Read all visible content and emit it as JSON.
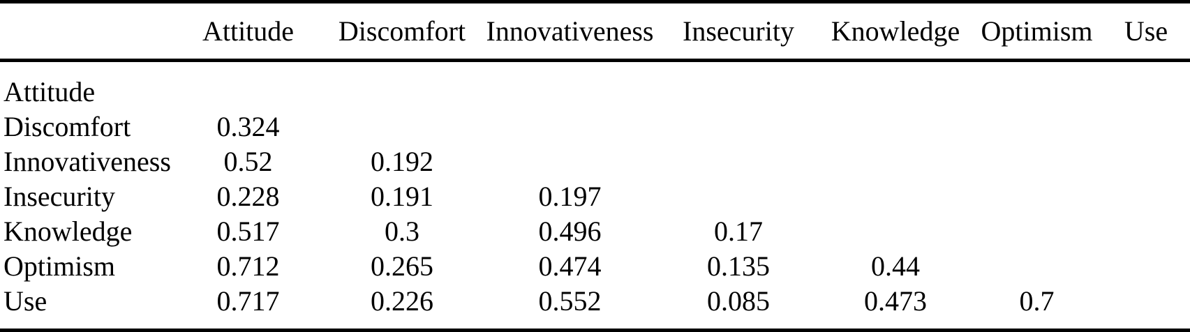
{
  "table": {
    "title": "correlation-matrix",
    "columns": [
      "",
      "Attitude",
      "Discomfort",
      "Innovativeness",
      "Insecurity",
      "Knowledge",
      "Optimism",
      "Use"
    ],
    "rows": [
      {
        "label": "Attitude",
        "values": [
          "",
          "",
          "",
          "",
          "",
          "",
          ""
        ]
      },
      {
        "label": "Discomfort",
        "values": [
          "0.324",
          "",
          "",
          "",
          "",
          "",
          ""
        ]
      },
      {
        "label": "Innovativeness",
        "values": [
          "0.52",
          "0.192",
          "",
          "",
          "",
          "",
          ""
        ]
      },
      {
        "label": "Insecurity",
        "values": [
          "0.228",
          "0.191",
          "0.197",
          "",
          "",
          "",
          ""
        ]
      },
      {
        "label": "Knowledge",
        "values": [
          "0.517",
          "0.3",
          "0.496",
          "0.17",
          "",
          "",
          ""
        ]
      },
      {
        "label": "Optimism",
        "values": [
          "0.712",
          "0.265",
          "0.474",
          "0.135",
          "0.44",
          "",
          ""
        ]
      },
      {
        "label": "Use",
        "values": [
          "0.717",
          "0.226",
          "0.552",
          "0.085",
          "0.473",
          "0.7",
          ""
        ]
      }
    ]
  },
  "chart_data": {
    "type": "table",
    "title": "",
    "columns": [
      "",
      "Attitude",
      "Discomfort",
      "Innovativeness",
      "Insecurity",
      "Knowledge",
      "Optimism",
      "Use"
    ],
    "rows": [
      [
        "Attitude",
        null,
        null,
        null,
        null,
        null,
        null,
        null
      ],
      [
        "Discomfort",
        0.324,
        null,
        null,
        null,
        null,
        null,
        null
      ],
      [
        "Innovativeness",
        0.52,
        0.192,
        null,
        null,
        null,
        null,
        null
      ],
      [
        "Insecurity",
        0.228,
        0.191,
        0.197,
        null,
        null,
        null,
        null
      ],
      [
        "Knowledge",
        0.517,
        0.3,
        0.496,
        0.17,
        null,
        null,
        null
      ],
      [
        "Optimism",
        0.712,
        0.265,
        0.474,
        0.135,
        0.44,
        null,
        null
      ],
      [
        "Use",
        0.717,
        0.226,
        0.552,
        0.085,
        0.473,
        0.7,
        null
      ]
    ]
  },
  "colors": {
    "text": "#000000",
    "background": "#ffffff",
    "rule": "#000000"
  }
}
